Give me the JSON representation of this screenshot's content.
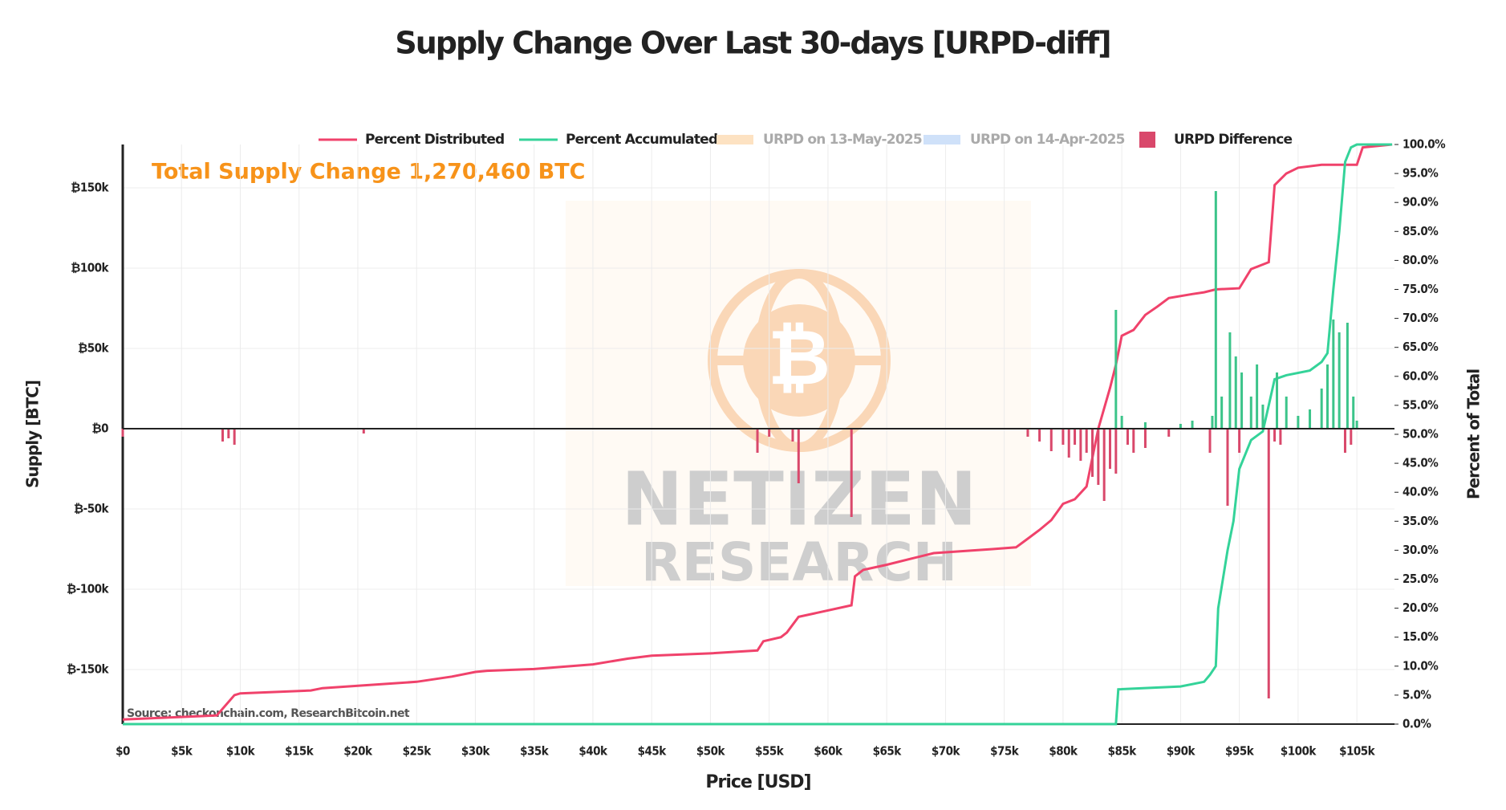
{
  "chart_data": {
    "type": "line",
    "title": "Supply Change Over Last 30-days [URPD-diff]",
    "xlabel": "Price [USD]",
    "ylabel": "Supply [BTC]",
    "y2label": "Percent of Total",
    "annotation": "Total Supply Change 1,270,460 BTC",
    "source": "Source: checkonchain.com, ResearchBitcoin.net",
    "watermark": [
      "NETIZEN",
      "RESEARCH"
    ],
    "grid": true,
    "legend": "top",
    "xlim": [
      0,
      108200
    ],
    "ylim": [
      -184000,
      177000
    ],
    "y2lim": [
      0,
      100
    ],
    "xticks": [
      {
        "value": 0,
        "label": "$0"
      },
      {
        "value": 5000,
        "label": "$5k"
      },
      {
        "value": 10000,
        "label": "$10k"
      },
      {
        "value": 15000,
        "label": "$15k"
      },
      {
        "value": 20000,
        "label": "$20k"
      },
      {
        "value": 25000,
        "label": "$25k"
      },
      {
        "value": 30000,
        "label": "$30k"
      },
      {
        "value": 35000,
        "label": "$35k"
      },
      {
        "value": 40000,
        "label": "$40k"
      },
      {
        "value": 45000,
        "label": "$45k"
      },
      {
        "value": 50000,
        "label": "$50k"
      },
      {
        "value": 55000,
        "label": "$55k"
      },
      {
        "value": 60000,
        "label": "$60k"
      },
      {
        "value": 65000,
        "label": "$65k"
      },
      {
        "value": 70000,
        "label": "$70k"
      },
      {
        "value": 75000,
        "label": "$75k"
      },
      {
        "value": 80000,
        "label": "$80k"
      },
      {
        "value": 85000,
        "label": "$85k"
      },
      {
        "value": 90000,
        "label": "$90k"
      },
      {
        "value": 95000,
        "label": "$95k"
      },
      {
        "value": 100000,
        "label": "$100k"
      },
      {
        "value": 105000,
        "label": "$105k"
      }
    ],
    "yticks": [
      {
        "value": -150000,
        "label": "₿-150k"
      },
      {
        "value": -100000,
        "label": "₿-100k"
      },
      {
        "value": -50000,
        "label": "₿-50k"
      },
      {
        "value": 0,
        "label": "₿0"
      },
      {
        "value": 50000,
        "label": "₿50k"
      },
      {
        "value": 100000,
        "label": "₿100k"
      },
      {
        "value": 150000,
        "label": "₿150k"
      }
    ],
    "y2ticks": [
      {
        "value": 0,
        "label": "0.0%"
      },
      {
        "value": 5,
        "label": "5.0%"
      },
      {
        "value": 10,
        "label": "10.0%"
      },
      {
        "value": 15,
        "label": "15.0%"
      },
      {
        "value": 20,
        "label": "20.0%"
      },
      {
        "value": 25,
        "label": "25.0%"
      },
      {
        "value": 30,
        "label": "30.0%"
      },
      {
        "value": 35,
        "label": "35.0%"
      },
      {
        "value": 40,
        "label": "40.0%"
      },
      {
        "value": 45,
        "label": "45.0%"
      },
      {
        "value": 50,
        "label": "50.0%"
      },
      {
        "value": 55,
        "label": "55.0%"
      },
      {
        "value": 60,
        "label": "60.0%"
      },
      {
        "value": 65,
        "label": "65.0%"
      },
      {
        "value": 70,
        "label": "70.0%"
      },
      {
        "value": 75,
        "label": "75.0%"
      },
      {
        "value": 80,
        "label": "80.0%"
      },
      {
        "value": 85,
        "label": "85.0%"
      },
      {
        "value": 90,
        "label": "90.0%"
      },
      {
        "value": 95,
        "label": "95.0%"
      },
      {
        "value": 100,
        "label": "100.0%"
      }
    ],
    "series": [
      {
        "name": "Percent Distributed",
        "type": "line",
        "axis": "y2",
        "color": "#f0426b",
        "x": [
          0,
          8000,
          9500,
          10000,
          16000,
          17000,
          20000,
          25000,
          28000,
          30000,
          31000,
          35000,
          40000,
          43000,
          45000,
          50000,
          54000,
          54500,
          56000,
          56500,
          57500,
          62000,
          62300,
          63000,
          65000,
          67000,
          69000,
          74000,
          76000,
          77000,
          78000,
          79000,
          80000,
          81000,
          82000,
          83000,
          84000,
          84500,
          85000,
          86000,
          87000,
          88000,
          89000,
          91000,
          92000,
          93000,
          95000,
          96000,
          97500,
          98000,
          99000,
          100000,
          102000,
          105000,
          105500,
          108000
        ],
        "values": [
          0.8,
          1.5,
          5,
          5.3,
          5.8,
          6.2,
          6.6,
          7.3,
          8.2,
          9,
          9.2,
          9.5,
          10.3,
          11.3,
          11.8,
          12.2,
          12.7,
          14.3,
          15,
          15.8,
          18.5,
          20.5,
          25.5,
          26.6,
          27.5,
          28.5,
          29.5,
          30.2,
          30.5,
          32,
          33.5,
          35.2,
          38,
          38.8,
          41,
          51,
          58,
          62,
          67,
          68,
          70.6,
          72,
          73.5,
          74.2,
          74.5,
          75,
          75.2,
          78.5,
          79.7,
          93,
          95,
          96,
          96.5,
          96.5,
          99.5,
          100
        ]
      },
      {
        "name": "Percent Accumulated",
        "type": "line",
        "axis": "y2",
        "color": "#34d399",
        "x": [
          0,
          84500,
          84700,
          90000,
          92000,
          92500,
          93000,
          93200,
          94000,
          94500,
          95000,
          96000,
          97000,
          97500,
          98000,
          99000,
          101000,
          102000,
          102500,
          103000,
          103500,
          104000,
          104500,
          105000,
          108000
        ],
        "values": [
          0,
          0,
          6,
          6.5,
          7.3,
          8.5,
          10,
          20,
          30,
          35,
          44,
          49,
          50.5,
          55,
          59.5,
          60.2,
          61,
          62.5,
          64,
          75,
          85,
          97,
          99.5,
          100,
          100
        ]
      },
      {
        "name": "URPD on 13-May-2025",
        "type": "bar",
        "color": "#fde2c2",
        "hidden": true,
        "x": [],
        "values": []
      },
      {
        "name": "URPD on 14-Apr-2025",
        "type": "bar",
        "color": "#cfe1f9",
        "hidden": true,
        "x": [],
        "values": []
      },
      {
        "name": "URPD Difference",
        "type": "bar",
        "axis": "y",
        "color": "#d9486b",
        "positive_color": "#3cc48a",
        "x": [
          0,
          8500,
          9000,
          9500,
          20500,
          54000,
          55000,
          57000,
          57500,
          62000,
          77000,
          78000,
          79000,
          80000,
          80500,
          81000,
          81500,
          82000,
          82500,
          83000,
          83500,
          84000,
          84500,
          85500,
          86000,
          87000,
          89000,
          92500,
          94000,
          95000,
          97500,
          98000,
          98500,
          104000,
          104500,
          84500,
          85000,
          87000,
          90000,
          91000,
          92700,
          93000,
          93500,
          94200,
          94700,
          95200,
          96000,
          96500,
          97000,
          98200,
          99000,
          100000,
          101000,
          102000,
          102500,
          103000,
          103500,
          104200,
          104700,
          105000
        ],
        "values": [
          -5000,
          -8000,
          -6000,
          -10000,
          -3000,
          -15000,
          -5000,
          -8000,
          -34000,
          -55000,
          -5000,
          -8000,
          -14000,
          -10000,
          -18000,
          -10000,
          -20000,
          -15000,
          -30000,
          -35000,
          -45000,
          -25000,
          -28000,
          -10000,
          -15000,
          -12000,
          -5000,
          -15000,
          -48000,
          -15000,
          -168000,
          -8000,
          -10000,
          -15000,
          -10000,
          74000,
          8000,
          4000,
          3000,
          5000,
          8000,
          148000,
          20000,
          60000,
          45000,
          35000,
          20000,
          40000,
          15000,
          35000,
          20000,
          8000,
          12000,
          25000,
          40000,
          68000,
          60000,
          66000,
          20000,
          5000
        ]
      }
    ]
  }
}
